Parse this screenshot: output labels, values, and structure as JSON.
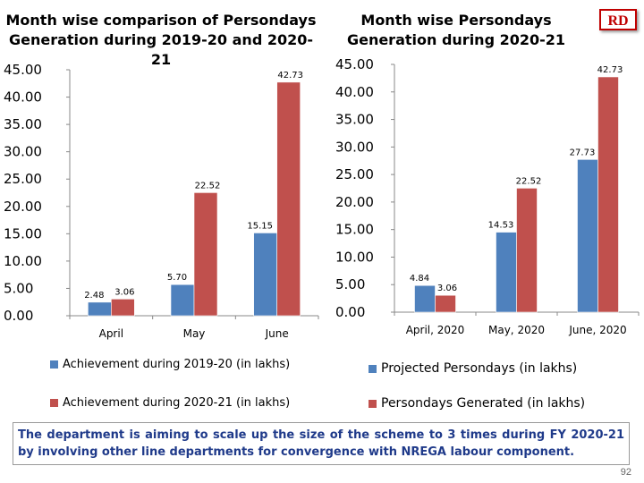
{
  "slide": {
    "badge": "RD",
    "note": "The department is aiming to scale up the size of the scheme to 3 times during FY 2020-21 by involving other line departments for convergence with NREGA labour component.",
    "page_number": "92"
  },
  "chart_data": [
    {
      "type": "bar",
      "title": "Month wise comparison of Persondays Generation during 2019-20 and 2020-21",
      "categories": [
        "April",
        "May",
        "June"
      ],
      "series": [
        {
          "name": "Achievement during 2019-20 (in lakhs)",
          "values": [
            2.48,
            5.7,
            15.15
          ],
          "labels": [
            "2.48",
            "5.70",
            "15.15"
          ],
          "color": "#4f81bd"
        },
        {
          "name": "Achievement during 2020-21 (in lakhs)",
          "values": [
            3.06,
            22.52,
            42.73
          ],
          "labels": [
            "3.06",
            "22.52",
            "42.73"
          ],
          "color": "#c0504d"
        }
      ],
      "yticks": [
        "0.00",
        "5.00",
        "10.00",
        "15.00",
        "20.00",
        "25.00",
        "30.00",
        "35.00",
        "40.00",
        "45.00"
      ],
      "ylim": [
        0,
        45
      ],
      "legend": "bottom"
    },
    {
      "type": "bar",
      "title": "Month wise Persondays Generation during 2020-21",
      "categories": [
        "April, 2020",
        "May, 2020",
        "June, 2020"
      ],
      "series": [
        {
          "name": "Projected Persondays (in lakhs)",
          "values": [
            4.84,
            14.53,
            27.73
          ],
          "labels": [
            "4.84",
            "14.53",
            "27.73"
          ],
          "color": "#4f81bd"
        },
        {
          "name": "Persondays Generated  (in lakhs)",
          "values": [
            3.06,
            22.52,
            42.73
          ],
          "labels": [
            "3.06",
            "22.52",
            "42.73"
          ],
          "color": "#c0504d"
        }
      ],
      "yticks": [
        "0.00",
        "5.00",
        "10.00",
        "15.00",
        "20.00",
        "25.00",
        "30.00",
        "35.00",
        "40.00",
        "45.00"
      ],
      "ylim": [
        0,
        45
      ],
      "legend": "bottom"
    }
  ]
}
